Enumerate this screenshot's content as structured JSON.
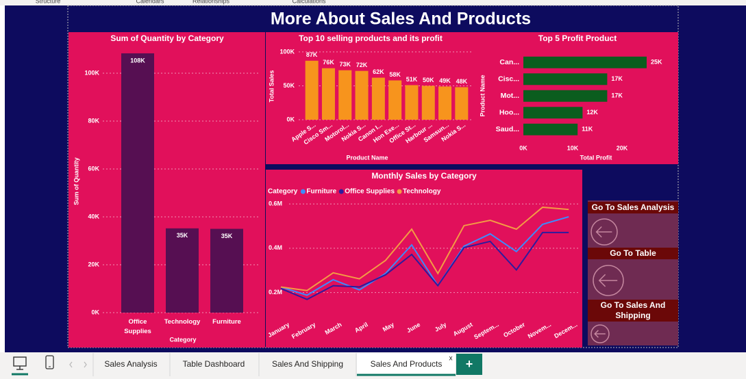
{
  "ribbon": [
    "Structure",
    "Calendars",
    "Relationships",
    "Calculations"
  ],
  "title": "More About Sales And Products",
  "chart_data": [
    {
      "type": "bar",
      "title": "Sum of Quantity by Category",
      "categories": [
        "Office Supplies",
        "Technology",
        "Furniture"
      ],
      "values": [
        108300,
        35200,
        35000
      ],
      "value_labels": [
        "108K",
        "35K",
        "35K"
      ],
      "color": "#560f52",
      "ylim": [
        0,
        110000
      ],
      "yticks": [
        {
          "value": 0,
          "label": "0K"
        },
        {
          "value": 20000,
          "label": "20K"
        },
        {
          "value": 40000,
          "label": "40K"
        },
        {
          "value": 60000,
          "label": "60K"
        },
        {
          "value": 80000,
          "label": "80K"
        },
        {
          "value": 100000,
          "label": "100K"
        }
      ],
      "grid": true,
      "x_label": "Category",
      "y_label": "Sum of Quantity"
    },
    {
      "type": "bar",
      "title": "Top 10 selling products and its profit",
      "categories": [
        "Apple S...",
        "Cisco Sm...",
        "Motorol...",
        "Nokia S...",
        "Canon I...",
        "Hon Exe...",
        "Office St...",
        "Harbour ...",
        "Samsun...",
        "Nokia S..."
      ],
      "values": [
        87000,
        76000,
        73000,
        72000,
        62000,
        58000,
        51000,
        50000,
        49000,
        48000
      ],
      "value_labels": [
        "87K",
        "76K",
        "73K",
        "72K",
        "62K",
        "58K",
        "51K",
        "50K",
        "49K",
        "48K"
      ],
      "color": "#f7941d",
      "ylim": [
        0,
        110000
      ],
      "yticks": [
        {
          "value": 0,
          "label": "0K"
        },
        {
          "value": 50000,
          "label": "50K"
        },
        {
          "value": 100000,
          "label": "100K"
        }
      ],
      "grid": true,
      "x_label": "Product Name",
      "y_label": "Total Sales"
    },
    {
      "type": "bar",
      "orientation": "horizontal",
      "title": "Top 5 Profit Product",
      "categories": [
        "Can...",
        "Cisc...",
        "Mot...",
        "Hoo...",
        "Saud..."
      ],
      "values": [
        25000,
        17000,
        17000,
        12000,
        11000
      ],
      "value_labels": [
        "25K",
        "17K",
        "17K",
        "12K",
        "11K"
      ],
      "color": "#0b5d1e",
      "xlim": [
        0,
        25000
      ],
      "xticks": [
        {
          "value": 0,
          "label": "0K"
        },
        {
          "value": 10000,
          "label": "10K"
        },
        {
          "value": 20000,
          "label": "20K"
        }
      ],
      "grid": false,
      "x_label": "Total Profit",
      "y_label": "Product Name"
    },
    {
      "type": "line",
      "title": "Monthly Sales by Category",
      "legend_title": "Category",
      "categories": [
        "January",
        "February",
        "March",
        "April",
        "May",
        "June",
        "July",
        "August",
        "Septem...",
        "October",
        "Novem...",
        "Decem..."
      ],
      "series": [
        {
          "name": "Furniture",
          "color": "#3d8bfd",
          "values": [
            225000,
            188000,
            258000,
            212000,
            286000,
            415000,
            231000,
            409000,
            465000,
            385000,
            508000,
            542000
          ]
        },
        {
          "name": "Office Supplies",
          "color": "#2d1b9e",
          "values": [
            218000,
            169000,
            231000,
            225000,
            280000,
            372000,
            231000,
            403000,
            431000,
            302000,
            471000,
            471000
          ]
        },
        {
          "name": "Technology",
          "color": "#f39c44",
          "values": [
            225000,
            209000,
            289000,
            262000,
            345000,
            486000,
            286000,
            502000,
            526000,
            486000,
            585000,
            575000
          ]
        }
      ],
      "ylim": [
        100000,
        625000
      ],
      "yticks": [
        {
          "value": 200000,
          "label": "0.2M"
        },
        {
          "value": 400000,
          "label": "0.4M"
        },
        {
          "value": 600000,
          "label": "0.6M"
        }
      ],
      "grid": true
    }
  ],
  "buttons": [
    "Go To Sales Analysis",
    "Go To Table Dashboard",
    "Go To Sales And Shipping"
  ],
  "tabs": [
    "Sales Analysis",
    "Table Dashboard",
    "Sales And Shipping",
    "Sales And Products"
  ],
  "close_tab": "x",
  "new_page_button": "+"
}
